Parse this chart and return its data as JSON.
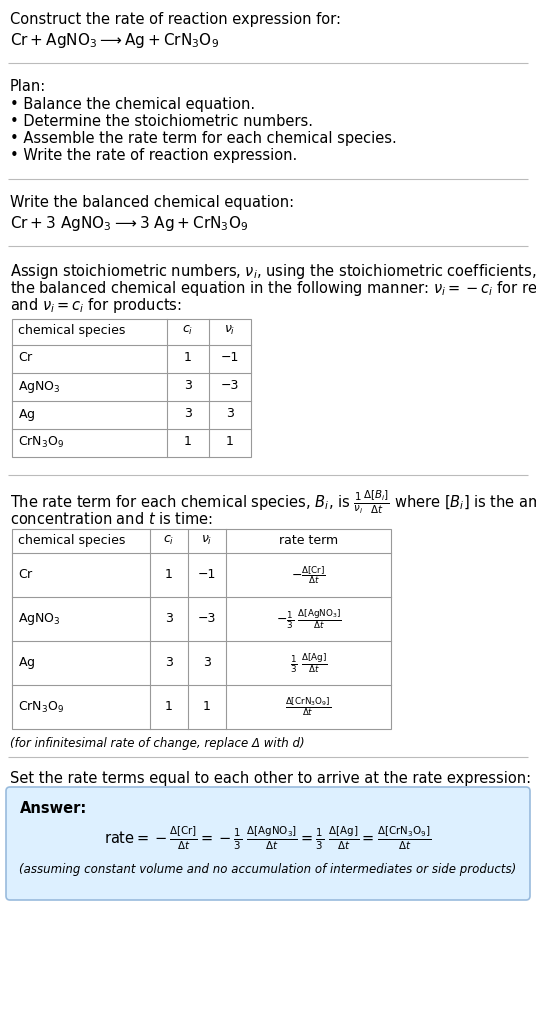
{
  "title_line1": "Construct the rate of reaction expression for:",
  "plan_header": "Plan:",
  "plan_items": [
    "• Balance the chemical equation.",
    "• Determine the stoichiometric numbers.",
    "• Assemble the rate term for each chemical species.",
    "• Write the rate of reaction expression."
  ],
  "balanced_header": "Write the balanced chemical equation:",
  "table1_rows": [
    [
      "Cr",
      "1",
      "−1"
    ],
    [
      "AgNO_3",
      "3",
      "−3"
    ],
    [
      "Ag",
      "3",
      "3"
    ],
    [
      "CrN_3O_9",
      "1",
      "1"
    ]
  ],
  "table2_rows": [
    [
      "Cr",
      "1",
      "−1"
    ],
    [
      "AgNO_3",
      "3",
      "−3"
    ],
    [
      "Ag",
      "3",
      "3"
    ],
    [
      "CrN_3O_9",
      "1",
      "1"
    ]
  ],
  "infinitesimal_note": "(for infinitesimal rate of change, replace Δ with d)",
  "set_equal_text": "Set the rate terms equal to each other to arrive at the rate expression:",
  "answer_bg_color": "#ddf0ff",
  "answer_border_color": "#99bbdd",
  "answer_label": "Answer:",
  "answer_note": "(assuming constant volume and no accumulation of intermediates or side products)",
  "bg_color": "#ffffff",
  "table_border_color": "#999999",
  "separator_color": "#bbbbbb"
}
